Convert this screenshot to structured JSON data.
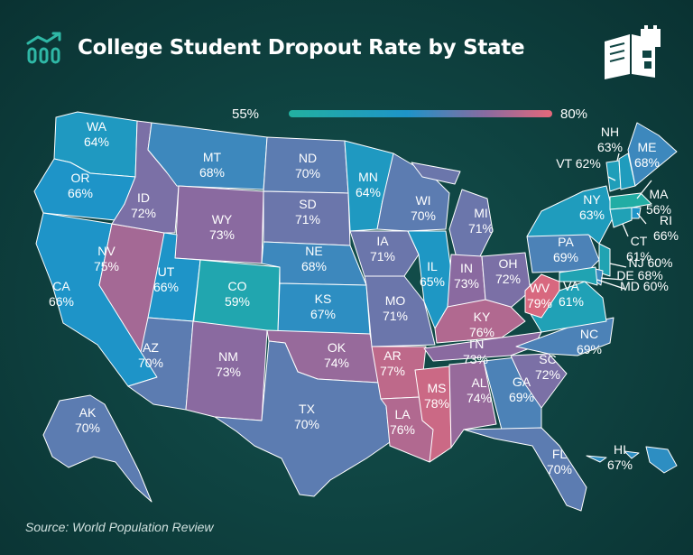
{
  "title": "College Student Dropout Rate by State",
  "legend": {
    "min_label": "55%",
    "max_label": "80%",
    "min_color": "#22b0a0",
    "max_color": "#e5687a"
  },
  "source": "Source: World Population Review",
  "icons": {
    "header_icon": "bar-chart-icon",
    "logo": "books-logo-icon"
  },
  "colors": {
    "background": "#0f4442",
    "border": "#ffffff",
    "text": "#ffffff"
  },
  "states": [
    {
      "abbr": "WA",
      "value": "64%",
      "rate": 64
    },
    {
      "abbr": "OR",
      "value": "66%",
      "rate": 66
    },
    {
      "abbr": "CA",
      "value": "66%",
      "rate": 66
    },
    {
      "abbr": "NV",
      "value": "75%",
      "rate": 75
    },
    {
      "abbr": "ID",
      "value": "72%",
      "rate": 72
    },
    {
      "abbr": "MT",
      "value": "68%",
      "rate": 68
    },
    {
      "abbr": "WY",
      "value": "73%",
      "rate": 73
    },
    {
      "abbr": "UT",
      "value": "66%",
      "rate": 66
    },
    {
      "abbr": "CO",
      "value": "59%",
      "rate": 59
    },
    {
      "abbr": "AZ",
      "value": "70%",
      "rate": 70
    },
    {
      "abbr": "NM",
      "value": "73%",
      "rate": 73
    },
    {
      "abbr": "ND",
      "value": "70%",
      "rate": 70
    },
    {
      "abbr": "SD",
      "value": "71%",
      "rate": 71
    },
    {
      "abbr": "NE",
      "value": "68%",
      "rate": 68
    },
    {
      "abbr": "KS",
      "value": "67%",
      "rate": 67
    },
    {
      "abbr": "OK",
      "value": "74%",
      "rate": 74
    },
    {
      "abbr": "TX",
      "value": "70%",
      "rate": 70
    },
    {
      "abbr": "MN",
      "value": "64%",
      "rate": 64
    },
    {
      "abbr": "IA",
      "value": "71%",
      "rate": 71
    },
    {
      "abbr": "MO",
      "value": "71%",
      "rate": 71
    },
    {
      "abbr": "AR",
      "value": "77%",
      "rate": 77
    },
    {
      "abbr": "LA",
      "value": "76%",
      "rate": 76
    },
    {
      "abbr": "WI",
      "value": "70%",
      "rate": 70
    },
    {
      "abbr": "IL",
      "value": "65%",
      "rate": 65
    },
    {
      "abbr": "MI",
      "value": "71%",
      "rate": 71
    },
    {
      "abbr": "IN",
      "value": "73%",
      "rate": 73
    },
    {
      "abbr": "OH",
      "value": "72%",
      "rate": 72
    },
    {
      "abbr": "KY",
      "value": "76%",
      "rate": 76
    },
    {
      "abbr": "TN",
      "value": "73%",
      "rate": 73
    },
    {
      "abbr": "MS",
      "value": "78%",
      "rate": 78
    },
    {
      "abbr": "AL",
      "value": "74%",
      "rate": 74
    },
    {
      "abbr": "GA",
      "value": "69%",
      "rate": 69
    },
    {
      "abbr": "FL",
      "value": "70%",
      "rate": 70
    },
    {
      "abbr": "SC",
      "value": "72%",
      "rate": 72
    },
    {
      "abbr": "NC",
      "value": "69%",
      "rate": 69
    },
    {
      "abbr": "VA",
      "value": "61%",
      "rate": 61
    },
    {
      "abbr": "WV",
      "value": "79%",
      "rate": 79
    },
    {
      "abbr": "PA",
      "value": "69%",
      "rate": 69
    },
    {
      "abbr": "NY",
      "value": "63%",
      "rate": 63
    },
    {
      "abbr": "VT",
      "value": "62%",
      "rate": 62
    },
    {
      "abbr": "NH",
      "value": "63%",
      "rate": 63
    },
    {
      "abbr": "ME",
      "value": "68%",
      "rate": 68
    },
    {
      "abbr": "MA",
      "value": "56%",
      "rate": 56
    },
    {
      "abbr": "RI",
      "value": "66%",
      "rate": 66
    },
    {
      "abbr": "CT",
      "value": "61%",
      "rate": 61
    },
    {
      "abbr": "NJ",
      "value": "60%",
      "rate": 60
    },
    {
      "abbr": "DE",
      "value": "68%",
      "rate": 68
    },
    {
      "abbr": "MD",
      "value": "60%",
      "rate": 60
    },
    {
      "abbr": "AK",
      "value": "70%",
      "rate": 70
    },
    {
      "abbr": "HI",
      "value": "67%",
      "rate": 67
    }
  ]
}
